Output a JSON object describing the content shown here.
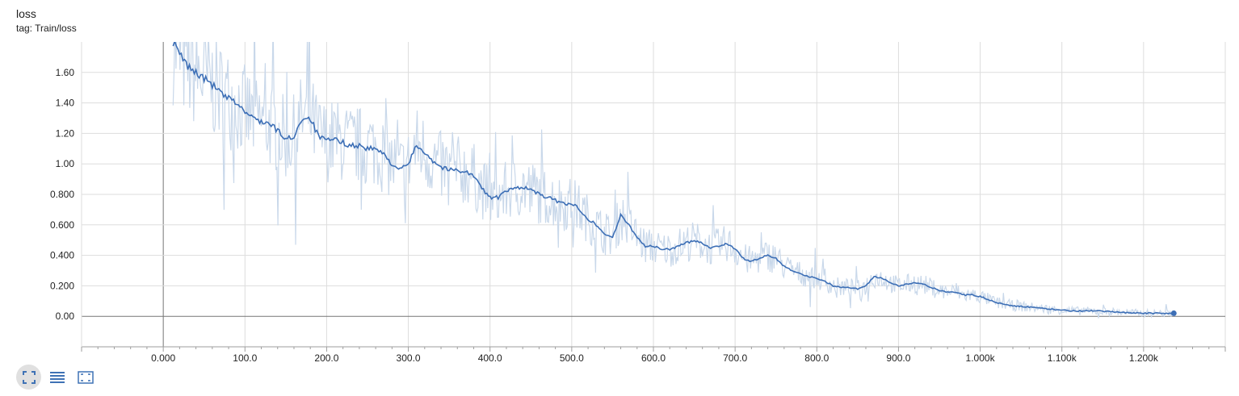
{
  "card": {
    "title": "loss",
    "tag": "tag: Train/loss"
  },
  "colors": {
    "smoothed": "#3d6fb6",
    "raw": "#c9d8ea",
    "grid": "#dddddd",
    "axis": "#9e9e9e",
    "zero_line": "#757575",
    "toolbar_icon": "#3f72b5"
  },
  "toolbar": {
    "buttons": [
      {
        "name": "fit-domain-button",
        "icon": "fit-domain-icon",
        "active": true
      },
      {
        "name": "toggle-log-scale-button",
        "icon": "list-lines-icon",
        "active": false
      },
      {
        "name": "download-data-button",
        "icon": "dashed-frame-icon",
        "active": false
      }
    ]
  },
  "chart_data": {
    "type": "line",
    "title": "loss",
    "subtitle": "tag: Train/loss",
    "xlabel": "",
    "ylabel": "",
    "xlim": [
      -100,
      1300
    ],
    "ylim": [
      -0.2,
      1.8
    ],
    "grid": true,
    "x_ticks": [
      0,
      100,
      200,
      300,
      400,
      500,
      600,
      700,
      800,
      900,
      1000,
      1100,
      1200
    ],
    "x_tick_labels": [
      "0.000",
      "100.0",
      "200.0",
      "300.0",
      "400.0",
      "500.0",
      "600.0",
      "700.0",
      "800.0",
      "900.0",
      "1.000k",
      "1.100k",
      "1.200k"
    ],
    "y_ticks": [
      0,
      0.2,
      0.4,
      0.6,
      0.8,
      1.0,
      1.2,
      1.4,
      1.6
    ],
    "y_tick_labels": [
      "0.00",
      "0.200",
      "0.400",
      "0.600",
      "0.800",
      "1.00",
      "1.20",
      "1.40",
      "1.60"
    ],
    "series": [
      {
        "name": "Train/loss (smoothed)",
        "x": [
          12,
          20,
          30,
          45,
          60,
          75,
          90,
          100,
          110,
          120,
          130,
          140,
          150,
          160,
          170,
          180,
          190,
          200,
          210,
          220,
          230,
          240,
          250,
          260,
          270,
          280,
          290,
          300,
          310,
          320,
          330,
          340,
          350,
          360,
          370,
          380,
          390,
          400,
          410,
          420,
          430,
          440,
          450,
          460,
          470,
          480,
          490,
          500,
          510,
          520,
          530,
          540,
          550,
          560,
          570,
          580,
          590,
          600,
          610,
          620,
          630,
          640,
          650,
          660,
          670,
          680,
          690,
          700,
          710,
          720,
          730,
          740,
          750,
          760,
          770,
          780,
          790,
          800,
          810,
          820,
          830,
          840,
          850,
          860,
          870,
          880,
          890,
          900,
          910,
          920,
          930,
          940,
          950,
          960,
          970,
          980,
          990,
          1000,
          1010,
          1020,
          1040,
          1060,
          1080,
          1100,
          1120,
          1140,
          1160,
          1180,
          1200,
          1220,
          1237
        ],
        "y": [
          1.8,
          1.72,
          1.64,
          1.58,
          1.52,
          1.44,
          1.4,
          1.34,
          1.3,
          1.28,
          1.26,
          1.22,
          1.16,
          1.18,
          1.3,
          1.3,
          1.18,
          1.15,
          1.16,
          1.14,
          1.12,
          1.12,
          1.1,
          1.1,
          1.06,
          1.0,
          0.96,
          1.0,
          1.12,
          1.08,
          1.02,
          0.98,
          0.96,
          0.96,
          0.95,
          0.92,
          0.84,
          0.78,
          0.78,
          0.82,
          0.84,
          0.85,
          0.83,
          0.8,
          0.78,
          0.76,
          0.74,
          0.74,
          0.7,
          0.64,
          0.6,
          0.54,
          0.52,
          0.66,
          0.6,
          0.52,
          0.46,
          0.46,
          0.44,
          0.44,
          0.46,
          0.48,
          0.5,
          0.48,
          0.45,
          0.46,
          0.48,
          0.44,
          0.38,
          0.36,
          0.38,
          0.4,
          0.38,
          0.33,
          0.3,
          0.28,
          0.26,
          0.25,
          0.23,
          0.2,
          0.19,
          0.19,
          0.18,
          0.2,
          0.26,
          0.25,
          0.22,
          0.2,
          0.21,
          0.22,
          0.21,
          0.19,
          0.17,
          0.16,
          0.16,
          0.14,
          0.14,
          0.13,
          0.11,
          0.09,
          0.07,
          0.06,
          0.05,
          0.04,
          0.035,
          0.035,
          0.03,
          0.025,
          0.02,
          0.02,
          0.02
        ]
      }
    ],
    "annotations": []
  }
}
